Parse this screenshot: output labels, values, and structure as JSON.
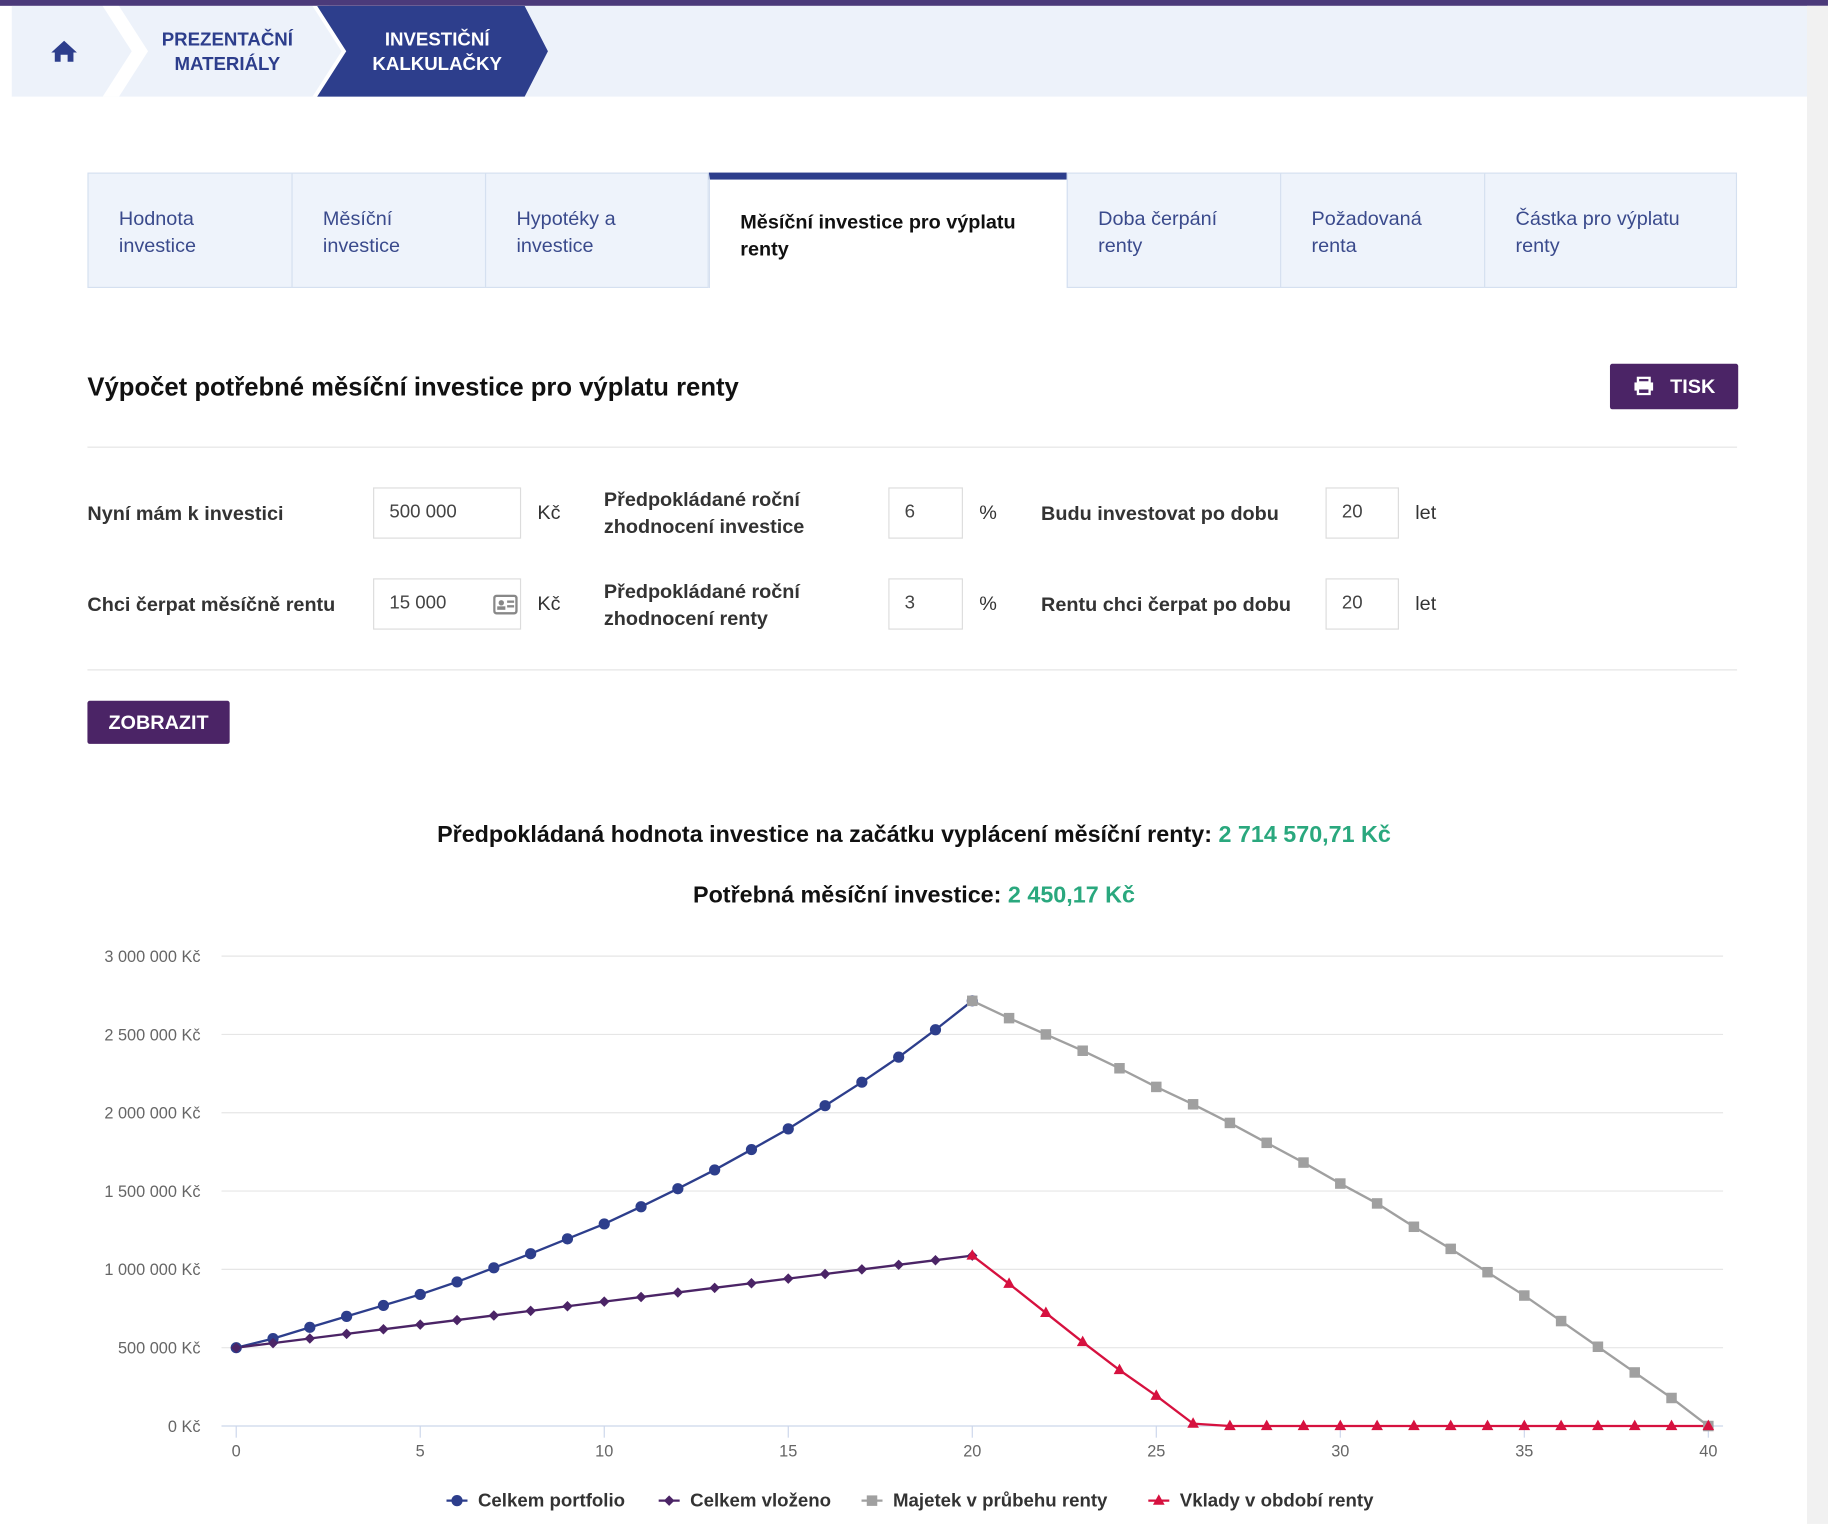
{
  "breadcrumb": [
    "PREZENTAČNÍ MATERIÁLY",
    "INVESTIČNÍ KALKULAČKY"
  ],
  "tabs": [
    "Hodnota investice",
    "Měsíční investice",
    "Hypotéky a investice",
    "Měsíční investice pro výplatu renty",
    "Doba čerpání renty",
    "Požadovaná renta",
    "Částka pro výplatu renty"
  ],
  "heading": "Výpočet potřebné měsíční investice pro výplatu renty",
  "print_button": "TISK",
  "form": [
    [
      {
        "label": "Nyní mám k investici",
        "value": "500 000",
        "unit": "Kč"
      },
      {
        "label": "Předpokládané roční zhodnocení investice",
        "value": "6",
        "unit": "%"
      },
      {
        "label": "Budu investovat po dobu",
        "value": "20",
        "unit": "let"
      }
    ],
    [
      {
        "label": "Chci čerpat měsíčně rentu",
        "value": "15 000",
        "unit": "Kč"
      },
      {
        "label": "Předpokládané roční zhodnocení renty",
        "value": "3",
        "unit": "%"
      },
      {
        "label": "Rentu chci čerpat po dobu",
        "value": "20",
        "unit": "let"
      }
    ]
  ],
  "submit_button": "ZOBRAZIT",
  "results": [
    {
      "label": "Předpokládaná hodnota investice na začátku vyplácení měsíční renty:",
      "value": "2 714 570,71 Kč"
    },
    {
      "label": "Potřebná měsíční investice:",
      "value": "2 450,17 Kč"
    }
  ],
  "chart_data": {
    "type": "line",
    "x": [
      0,
      1,
      2,
      3,
      4,
      5,
      6,
      7,
      8,
      9,
      10,
      11,
      12,
      13,
      14,
      15,
      16,
      17,
      18,
      19,
      20,
      21,
      22,
      23,
      24,
      25,
      26,
      27,
      28,
      29,
      30,
      31,
      32,
      33,
      34,
      35,
      36,
      37,
      38,
      39,
      40
    ],
    "xlim": [
      -0.4,
      40.4
    ],
    "xticks": [
      0,
      5,
      10,
      15,
      20,
      25,
      30,
      35,
      40
    ],
    "ylim": [
      0,
      3000000
    ],
    "yticks": [
      {
        "value": 0,
        "label": "0 Kč"
      },
      {
        "value": 500000,
        "label": "500 000 Kč"
      },
      {
        "value": 1000000,
        "label": "1 000 000 Kč"
      },
      {
        "value": 1500000,
        "label": "1 500 000 Kč"
      },
      {
        "value": 2000000,
        "label": "2 000 000 Kč"
      },
      {
        "value": 2500000,
        "label": "2 500 000 Kč"
      },
      {
        "value": 3000000,
        "label": "3 000 000 Kč"
      }
    ],
    "grid": true,
    "legend": "bottom",
    "series": [
      {
        "name": "Celkem portfolio",
        "color": "#2d3e8c",
        "marker": "circle",
        "values": [
          500000,
          558000,
          630000,
          700000,
          770000,
          840000,
          920000,
          1010000,
          1100000,
          1195000,
          1290000,
          1400000,
          1515000,
          1635000,
          1765000,
          1897000,
          2045000,
          2195000,
          2355000,
          2530000,
          2714571,
          null,
          null,
          null,
          null,
          null,
          null,
          null,
          null,
          null,
          null,
          null,
          null,
          null,
          null,
          null,
          null,
          null,
          null,
          null,
          null
        ]
      },
      {
        "name": "Celkem vloženo",
        "color": "#4b2466",
        "marker": "diamond",
        "values": [
          500000,
          529400,
          558800,
          588200,
          617600,
          647000,
          676400,
          705800,
          735200,
          764600,
          794000,
          823400,
          852800,
          882200,
          911600,
          941000,
          970400,
          999800,
          1029200,
          1058600,
          1088000,
          null,
          null,
          null,
          null,
          null,
          null,
          null,
          null,
          null,
          null,
          null,
          null,
          null,
          null,
          null,
          null,
          null,
          null,
          null,
          null
        ]
      },
      {
        "name": "Majetek v průbehu renty",
        "color": "#a0a0a0",
        "marker": "square",
        "values": [
          null,
          null,
          null,
          null,
          null,
          null,
          null,
          null,
          null,
          null,
          null,
          null,
          null,
          null,
          null,
          null,
          null,
          null,
          null,
          null,
          2714571,
          2604000,
          2500000,
          2396000,
          2284000,
          2165000,
          2054000,
          1935000,
          1808000,
          1682000,
          1548000,
          1421000,
          1272000,
          1131000,
          982000,
          833000,
          670000,
          506000,
          342000,
          179000,
          0
        ]
      },
      {
        "name": "Vklady v období renty",
        "color": "#d6113f",
        "marker": "triangle",
        "values": [
          null,
          null,
          null,
          null,
          null,
          null,
          null,
          null,
          null,
          null,
          null,
          null,
          null,
          null,
          null,
          null,
          null,
          null,
          null,
          null,
          1088000,
          908000,
          722000,
          536000,
          357000,
          193000,
          15000,
          0,
          0,
          0,
          0,
          0,
          0,
          0,
          0,
          0,
          0,
          0,
          0,
          0,
          0
        ]
      }
    ]
  }
}
